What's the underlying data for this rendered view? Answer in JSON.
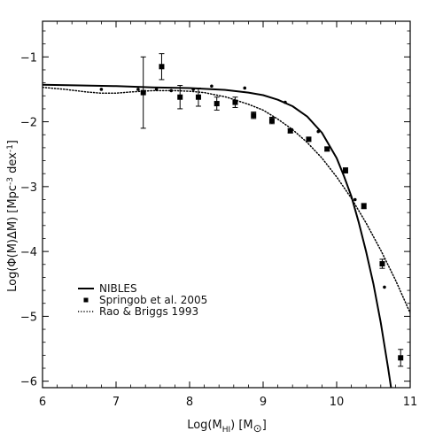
{
  "chart_data": {
    "type": "scatter",
    "title": "",
    "xlabel": "Log(M_HI) [M_⊙]",
    "ylabel": "Log(Φ(M)ΔM) [Mpc-3 dex-1]",
    "xlim": [
      6,
      11
    ],
    "ylim": [
      -6.1,
      -0.45
    ],
    "xticks": [
      6,
      7,
      8,
      9,
      10,
      11
    ],
    "yticks": [
      -1,
      -2,
      -3,
      -4,
      -5,
      -6
    ],
    "grid": false,
    "legend_position": "bottom-left",
    "series": [
      {
        "name": "NIBLES",
        "kind": "line",
        "style": "solid",
        "points": [
          [
            6.0,
            -1.43
          ],
          [
            6.5,
            -1.44
          ],
          [
            7.0,
            -1.45
          ],
          [
            7.5,
            -1.47
          ],
          [
            8.0,
            -1.48
          ],
          [
            8.5,
            -1.51
          ],
          [
            8.8,
            -1.55
          ],
          [
            9.0,
            -1.59
          ],
          [
            9.2,
            -1.66
          ],
          [
            9.4,
            -1.76
          ],
          [
            9.6,
            -1.92
          ],
          [
            9.8,
            -2.17
          ],
          [
            10.0,
            -2.56
          ],
          [
            10.1,
            -2.84
          ],
          [
            10.2,
            -3.15
          ],
          [
            10.3,
            -3.55
          ],
          [
            10.4,
            -4.0
          ],
          [
            10.5,
            -4.5
          ],
          [
            10.6,
            -5.1
          ],
          [
            10.7,
            -5.8
          ],
          [
            10.74,
            -6.1
          ]
        ]
      },
      {
        "name": "Springob et al. 2005",
        "kind": "points",
        "marker": "square",
        "points": [
          {
            "x": 7.37,
            "y": -1.55,
            "err": 0.55
          },
          {
            "x": 7.62,
            "y": -1.15,
            "err": 0.2
          },
          {
            "x": 7.87,
            "y": -1.62,
            "err": 0.18
          },
          {
            "x": 8.12,
            "y": -1.62,
            "err": 0.14
          },
          {
            "x": 8.37,
            "y": -1.72,
            "err": 0.1
          },
          {
            "x": 8.62,
            "y": -1.7,
            "err": 0.08
          },
          {
            "x": 8.87,
            "y": -1.9,
            "err": 0.05
          },
          {
            "x": 9.12,
            "y": -1.98,
            "err": 0.05
          },
          {
            "x": 9.37,
            "y": -2.14,
            "err": 0.03
          },
          {
            "x": 9.62,
            "y": -2.27,
            "err": 0.03
          },
          {
            "x": 9.87,
            "y": -2.42,
            "err": 0.03
          },
          {
            "x": 10.12,
            "y": -2.75,
            "err": 0.04
          },
          {
            "x": 10.37,
            "y": -3.3,
            "err": 0.04
          },
          {
            "x": 10.62,
            "y": -4.19,
            "err": 0.07
          },
          {
            "x": 10.87,
            "y": -5.64,
            "err": 0.13
          }
        ]
      },
      {
        "name": "",
        "kind": "points",
        "marker": "dot",
        "points": [
          [
            6.8,
            -1.5
          ],
          [
            7.3,
            -1.5
          ],
          [
            7.55,
            -1.5
          ],
          [
            7.75,
            -1.52
          ],
          [
            8.05,
            -1.5
          ],
          [
            8.3,
            -1.45
          ],
          [
            8.75,
            -1.48
          ],
          [
            9.3,
            -1.7
          ],
          [
            9.75,
            -2.15
          ],
          [
            10.25,
            -3.2
          ],
          [
            10.65,
            -4.55
          ]
        ]
      },
      {
        "name": "Rao & Briggs 1993",
        "kind": "line",
        "style": "dotted",
        "points": [
          [
            6.0,
            -1.47
          ],
          [
            6.3,
            -1.5
          ],
          [
            6.6,
            -1.54
          ],
          [
            6.8,
            -1.56
          ],
          [
            7.0,
            -1.56
          ],
          [
            7.2,
            -1.54
          ],
          [
            7.5,
            -1.52
          ],
          [
            7.8,
            -1.52
          ],
          [
            8.0,
            -1.53
          ],
          [
            8.2,
            -1.55
          ],
          [
            8.5,
            -1.62
          ],
          [
            8.8,
            -1.73
          ],
          [
            9.0,
            -1.82
          ],
          [
            9.2,
            -1.96
          ],
          [
            9.4,
            -2.12
          ],
          [
            9.6,
            -2.32
          ],
          [
            9.8,
            -2.56
          ],
          [
            10.0,
            -2.85
          ],
          [
            10.2,
            -3.18
          ],
          [
            10.4,
            -3.56
          ],
          [
            10.6,
            -3.98
          ],
          [
            10.8,
            -4.44
          ],
          [
            11.0,
            -4.95
          ]
        ]
      }
    ],
    "tick_labels_x": [
      "6",
      "7",
      "8",
      "9",
      "10",
      "11"
    ],
    "tick_labels_y": [
      "−1",
      "−2",
      "−3",
      "−4",
      "−5",
      "−6"
    ]
  }
}
